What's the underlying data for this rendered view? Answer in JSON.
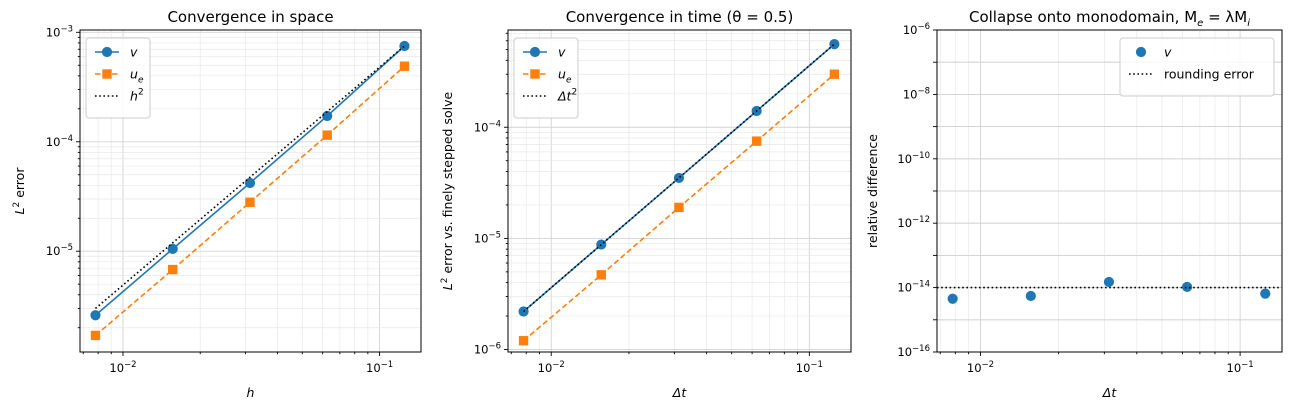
{
  "chart_data": [
    {
      "type": "line",
      "title": "Convergence in space",
      "xlabel": "h",
      "ylabel_main": "L",
      "ylabel_sup": "2",
      "ylabel_rest": " error",
      "xscale": "log",
      "yscale": "log",
      "xlim": [
        0.0068,
        0.145
      ],
      "ylim": [
        1.2e-06,
        0.00105
      ],
      "xticks": [
        {
          "v": 0.01,
          "m": "10",
          "e": "−2"
        },
        {
          "v": 0.1,
          "m": "10",
          "e": "−1"
        }
      ],
      "yticks": [
        {
          "v": 1e-05,
          "m": "10",
          "e": "−5"
        },
        {
          "v": 0.0001,
          "m": "10",
          "e": "−4"
        },
        {
          "v": 0.001,
          "m": "10",
          "e": "−3"
        }
      ],
      "grid": true,
      "legend_position": "upper-left",
      "series": [
        {
          "name": "v",
          "sub": "",
          "sup": "",
          "color": "#1f77b4",
          "marker": "circle",
          "linestyle": "solid",
          "x": [
            0.0078125,
            0.015625,
            0.03125,
            0.0625,
            0.125
          ],
          "y": [
            2.6e-06,
            1.05e-05,
            4.2e-05,
            0.000172,
            0.00075
          ]
        },
        {
          "name": "u",
          "sub": "e",
          "sup": "",
          "color": "#ff7f0e",
          "marker": "square",
          "linestyle": "dashed",
          "x": [
            0.0078125,
            0.015625,
            0.03125,
            0.0625,
            0.125
          ],
          "y": [
            1.7e-06,
            6.8e-06,
            2.8e-05,
            0.000115,
            0.00049
          ]
        },
        {
          "name": "h",
          "sub": "",
          "sup": "2",
          "color": "#000000",
          "marker": "none",
          "linestyle": "dotted",
          "x": [
            0.0078125,
            0.125
          ],
          "y": [
            3e-06,
            0.00075
          ]
        }
      ]
    },
    {
      "type": "line",
      "title": "Convergence in time (θ = 0.5)",
      "xlabel": "Δt",
      "ylabel_main": "L",
      "ylabel_sup": "2",
      "ylabel_rest": " error vs. finely stepped solve",
      "xscale": "log",
      "yscale": "log",
      "xlim": [
        0.0068,
        0.145
      ],
      "ylim": [
        9.5e-07,
        0.00075
      ],
      "xticks": [
        {
          "v": 0.01,
          "m": "10",
          "e": "−2"
        },
        {
          "v": 0.1,
          "m": "10",
          "e": "−1"
        }
      ],
      "yticks": [
        {
          "v": 1e-06,
          "m": "10",
          "e": "−6"
        },
        {
          "v": 1e-05,
          "m": "10",
          "e": "−5"
        },
        {
          "v": 0.0001,
          "m": "10",
          "e": "−4"
        }
      ],
      "grid": true,
      "legend_position": "upper-left",
      "series": [
        {
          "name": "v",
          "sub": "",
          "sup": "",
          "color": "#1f77b4",
          "marker": "circle",
          "linestyle": "solid",
          "x": [
            0.0078125,
            0.015625,
            0.03125,
            0.0625,
            0.125
          ],
          "y": [
            2.2e-06,
            8.8e-06,
            3.5e-05,
            0.00014,
            0.00056
          ]
        },
        {
          "name": "u",
          "sub": "e",
          "sup": "",
          "color": "#ff7f0e",
          "marker": "square",
          "linestyle": "dashed",
          "x": [
            0.0078125,
            0.015625,
            0.03125,
            0.0625,
            0.125
          ],
          "y": [
            1.2e-06,
            4.7e-06,
            1.9e-05,
            7.5e-05,
            0.0003
          ]
        },
        {
          "name": "Δt",
          "sub": "",
          "sup": "2",
          "color": "#000000",
          "marker": "none",
          "linestyle": "dotted",
          "x": [
            0.0078125,
            0.125
          ],
          "y": [
            2.2e-06,
            0.00056
          ]
        }
      ]
    },
    {
      "type": "scatter",
      "title": "Collapse onto monodomain, M",
      "title_sub1": "e",
      "title_mid": " = λM",
      "title_sub2": "i",
      "xlabel": "Δt",
      "ylabel_main": "relative difference",
      "ylabel_sup": "",
      "ylabel_rest": "",
      "xscale": "log",
      "yscale": "log",
      "xlim": [
        0.0068,
        0.145
      ],
      "ylim": [
        1e-16,
        1e-06
      ],
      "xticks": [
        {
          "v": 0.01,
          "m": "10",
          "e": "−2"
        },
        {
          "v": 0.1,
          "m": "10",
          "e": "−1"
        }
      ],
      "yticks": [
        {
          "v": 1e-16,
          "m": "10",
          "e": "−16"
        },
        {
          "v": 1e-14,
          "m": "10",
          "e": "−14"
        },
        {
          "v": 1e-12,
          "m": "10",
          "e": "−12"
        },
        {
          "v": 1e-10,
          "m": "10",
          "e": "−10"
        },
        {
          "v": 1e-08,
          "m": "10",
          "e": "−8"
        },
        {
          "v": 1e-06,
          "m": "10",
          "e": "−6"
        }
      ],
      "grid": true,
      "legend_position": "upper-right",
      "series": [
        {
          "name": "v",
          "sub": "",
          "sup": "",
          "color": "#1f77b4",
          "marker": "circle",
          "linestyle": "none",
          "x": [
            0.0078125,
            0.015625,
            0.03125,
            0.0625,
            0.125
          ],
          "y": [
            4.5e-15,
            5.5e-15,
            1.5e-14,
            1.05e-14,
            6.5e-15
          ]
        },
        {
          "name": "rounding error",
          "sub": "",
          "sup": "",
          "color": "#000000",
          "marker": "none",
          "linestyle": "dotted",
          "hline": 1e-14,
          "x": [
            0.0068,
            0.145
          ],
          "y": [
            1e-14,
            1e-14
          ]
        }
      ]
    }
  ]
}
